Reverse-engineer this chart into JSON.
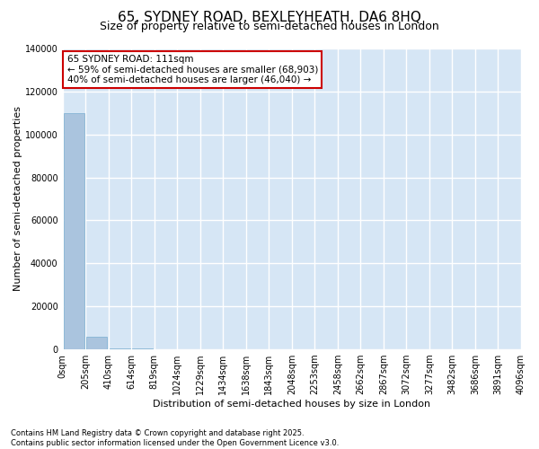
{
  "title": "65, SYDNEY ROAD, BEXLEYHEATH, DA6 8HQ",
  "subtitle": "Size of property relative to semi-detached houses in London",
  "xlabel": "Distribution of semi-detached houses by size in London",
  "ylabel": "Number of semi-detached properties",
  "bar_color": "#aac4de",
  "bar_edge_color": "#7aaed0",
  "annotation_line1": "65 SYDNEY ROAD: 111sqm",
  "annotation_line2": "← 59% of semi-detached houses are smaller (68,903)",
  "annotation_line3": "40% of semi-detached houses are larger (46,040) →",
  "annotation_box_color": "#cc0000",
  "bin_labels": [
    "0sqm",
    "205sqm",
    "410sqm",
    "614sqm",
    "819sqm",
    "1024sqm",
    "1229sqm",
    "1434sqm",
    "1638sqm",
    "1843sqm",
    "2048sqm",
    "2253sqm",
    "2458sqm",
    "2662sqm",
    "2867sqm",
    "3072sqm",
    "3277sqm",
    "3482sqm",
    "3686sqm",
    "3891sqm",
    "4096sqm"
  ],
  "bar_heights": [
    110000,
    6000,
    500,
    200,
    100,
    80,
    60,
    50,
    40,
    35,
    30,
    25,
    20,
    18,
    15,
    12,
    10,
    8,
    6,
    5
  ],
  "ylim": [
    0,
    140000
  ],
  "yticks": [
    0,
    20000,
    40000,
    60000,
    80000,
    100000,
    120000,
    140000
  ],
  "footer_text": "Contains HM Land Registry data © Crown copyright and database right 2025.\nContains public sector information licensed under the Open Government Licence v3.0.",
  "plot_bg_color": "#d6e6f5",
  "fig_bg_color": "#ffffff",
  "grid_color": "#ffffff",
  "title_fontsize": 11,
  "subtitle_fontsize": 9,
  "tick_fontsize": 7,
  "ylabel_fontsize": 8,
  "xlabel_fontsize": 8
}
